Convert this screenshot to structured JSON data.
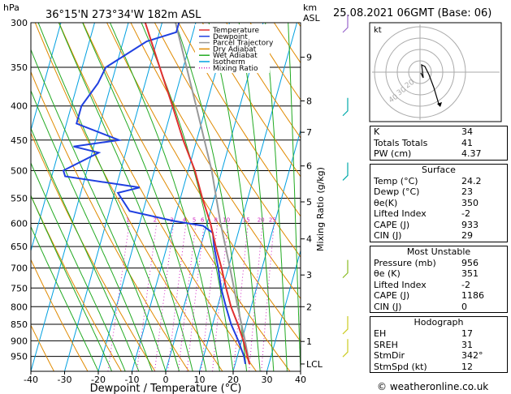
{
  "header": {
    "location": "36°15'N 273°34'W 182m ASL",
    "datetime": "25.08.2021 06GMT (Base: 06)",
    "hpa_label": "hPa",
    "km_label": "km",
    "asl_label": "ASL"
  },
  "chart_data": {
    "type": "skew-t",
    "xlabel": "Dewpoint / Temperature (°C)",
    "ylabel_right": "Mixing Ratio (g/kg)",
    "xlim": [
      -40,
      40
    ],
    "ylim_hpa": [
      300,
      1000
    ],
    "pressure_ticks": [
      300,
      350,
      400,
      450,
      500,
      550,
      600,
      650,
      700,
      750,
      800,
      850,
      900,
      950
    ],
    "temp_ticks": [
      -40,
      -30,
      -20,
      -10,
      0,
      10,
      20,
      30,
      40
    ],
    "km_ticks": [
      {
        "label": "9",
        "p": 338
      },
      {
        "label": "8",
        "p": 393
      },
      {
        "label": "7",
        "p": 438
      },
      {
        "label": "6",
        "p": 492
      },
      {
        "label": "5",
        "p": 557
      },
      {
        "label": "4",
        "p": 633
      },
      {
        "label": "3",
        "p": 717
      },
      {
        "label": "2",
        "p": 800
      },
      {
        "label": "1",
        "p": 902
      },
      {
        "label": "LCL",
        "p": 975
      }
    ],
    "mixing_ratio_labels": [
      "1",
      "2",
      "3",
      "4",
      "5",
      "6",
      "8",
      "10",
      "15",
      "20",
      "25"
    ],
    "mixing_ratio_values": [
      1,
      2,
      3,
      4,
      5,
      6,
      8,
      10,
      15,
      20,
      25
    ],
    "legend": [
      {
        "name": "Temperature",
        "color": "#e03030"
      },
      {
        "name": "Dewpoint",
        "color": "#2040e0"
      },
      {
        "name": "Parcel Trajectory",
        "color": "#999999"
      },
      {
        "name": "Dry Adiabat",
        "color": "#e08a00"
      },
      {
        "name": "Wet Adiabat",
        "color": "#22aa22"
      },
      {
        "name": "Isotherm",
        "color": "#00a0e0"
      },
      {
        "name": "Mixing Ratio",
        "color": "#d020c0"
      }
    ],
    "temperature": [
      [
        975,
        24.2
      ],
      [
        950,
        23
      ],
      [
        900,
        20.5
      ],
      [
        850,
        17.5
      ],
      [
        800,
        14
      ],
      [
        750,
        11
      ],
      [
        700,
        8
      ],
      [
        650,
        4.5
      ],
      [
        600,
        1
      ],
      [
        550,
        -3.5
      ],
      [
        500,
        -8
      ],
      [
        450,
        -14
      ],
      [
        400,
        -20
      ],
      [
        350,
        -27
      ],
      [
        300,
        -35
      ]
    ],
    "dewpoint": [
      [
        975,
        23
      ],
      [
        950,
        22
      ],
      [
        900,
        19
      ],
      [
        850,
        15.5
      ],
      [
        800,
        12.5
      ],
      [
        750,
        9.5
      ],
      [
        700,
        7
      ],
      [
        650,
        4
      ],
      [
        620,
        2.5
      ],
      [
        605,
        -1
      ],
      [
        595,
        -10
      ],
      [
        575,
        -24
      ],
      [
        540,
        -29
      ],
      [
        530,
        -23
      ],
      [
        510,
        -46
      ],
      [
        500,
        -47
      ],
      [
        470,
        -38
      ],
      [
        460,
        -46
      ],
      [
        450,
        -33
      ],
      [
        425,
        -47
      ],
      [
        400,
        -47
      ],
      [
        370,
        -44
      ],
      [
        350,
        -43
      ],
      [
        320,
        -33
      ],
      [
        310,
        -25
      ],
      [
        300,
        -25
      ]
    ],
    "parcel": [
      [
        975,
        24.2
      ],
      [
        900,
        21
      ],
      [
        800,
        16
      ],
      [
        700,
        10.5
      ],
      [
        600,
        4
      ],
      [
        500,
        -3
      ],
      [
        400,
        -13
      ],
      [
        300,
        -26
      ]
    ],
    "hodograph": {
      "label": "kt",
      "ring_labels": [
        "20",
        "30",
        "40"
      ]
    }
  },
  "indices": [
    {
      "label": "K",
      "value": "34"
    },
    {
      "label": "Totals Totals",
      "value": "41"
    },
    {
      "label": "PW (cm)",
      "value": "4.37"
    }
  ],
  "surface": {
    "title": "Surface",
    "rows": [
      {
        "label": "Temp (°C)",
        "value": "24.2"
      },
      {
        "label": "Dewp (°C)",
        "value": "23"
      },
      {
        "label": "θe(K)",
        "value": "350"
      },
      {
        "label": "Lifted Index",
        "value": "-2"
      },
      {
        "label": "CAPE (J)",
        "value": "933"
      },
      {
        "label": "CIN (J)",
        "value": "29"
      }
    ]
  },
  "most_unstable": {
    "title": "Most Unstable",
    "rows": [
      {
        "label": "Pressure (mb)",
        "value": "956"
      },
      {
        "label": "θe (K)",
        "value": "351"
      },
      {
        "label": "Lifted Index",
        "value": "-2"
      },
      {
        "label": "CAPE (J)",
        "value": "1186"
      },
      {
        "label": "CIN (J)",
        "value": "0"
      }
    ]
  },
  "hodograph_table": {
    "title": "Hodograph",
    "rows": [
      {
        "label": "EH",
        "value": "17"
      },
      {
        "label": "SREH",
        "value": "31"
      },
      {
        "label": "StmDir",
        "value": "342°"
      },
      {
        "label": "StmSpd (kt)",
        "value": "12"
      }
    ]
  },
  "footer": {
    "copyright": "© weatheronline.co.uk"
  }
}
